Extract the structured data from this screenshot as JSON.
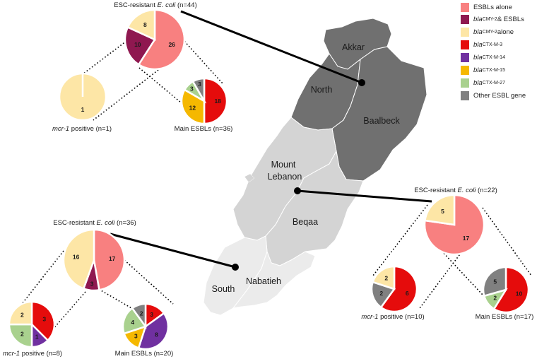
{
  "colors": {
    "esbl_alone": "#f88080",
    "cmy_esbl": "#8f1850",
    "cmy_alone": "#fde6a6",
    "ctxm3": "#e50c0c",
    "ctxm14": "#7030a0",
    "ctxm15": "#f5b800",
    "ctxm27": "#a9d18e",
    "other": "#808080"
  },
  "legend": [
    {
      "key": "esbl_alone",
      "parts": [
        {
          "t": "ESBLs alone"
        }
      ]
    },
    {
      "key": "cmy_esbl",
      "parts": [
        {
          "t": "bla",
          "i": true
        },
        {
          "t": "CMY-2",
          "s": true
        },
        {
          "t": " & ESBLs"
        }
      ]
    },
    {
      "key": "cmy_alone",
      "parts": [
        {
          "t": "bla",
          "i": true
        },
        {
          "t": "CMY-2",
          "s": true
        },
        {
          "t": " alone"
        }
      ]
    },
    {
      "key": "ctxm3",
      "parts": [
        {
          "t": "bla",
          "i": true
        },
        {
          "t": "CTX-M-3",
          "s": true
        }
      ]
    },
    {
      "key": "ctxm14",
      "parts": [
        {
          "t": "bla",
          "i": true
        },
        {
          "t": "CTX-M-14",
          "s": true
        }
      ]
    },
    {
      "key": "ctxm15",
      "parts": [
        {
          "t": "bla",
          "i": true
        },
        {
          "t": "CTX-M-15",
          "s": true
        }
      ]
    },
    {
      "key": "ctxm27",
      "parts": [
        {
          "t": "bla",
          "i": true
        },
        {
          "t": "CTX-M-27",
          "s": true
        }
      ]
    },
    {
      "key": "other",
      "parts": [
        {
          "t": "Other ESBL gene"
        }
      ]
    }
  ],
  "regions": {
    "akkar": "Akkar",
    "north": "North",
    "baalbeck": "Baalbeck",
    "mount_lebanon_1": "Mount",
    "mount_lebanon_2": "Lebanon",
    "beqaa": "Beqaa",
    "south": "South",
    "nabatieh": "Nabatieh"
  },
  "groups": {
    "north": {
      "title": {
        "pre": "ESC-resistant ",
        "em": "E. coli",
        "post": " (n=44)"
      },
      "main": [
        {
          "k": "esbl_alone",
          "v": 26
        },
        {
          "k": "cmy_esbl",
          "v": 10
        },
        {
          "k": "cmy_alone",
          "v": 8
        }
      ],
      "mcr": {
        "label_em": "mcr-1",
        "label": " positive (n=1)",
        "slices": [
          {
            "k": "cmy_alone",
            "v": 1
          }
        ]
      },
      "esbl": {
        "label": "Main ESBLs (n=36)",
        "slices": [
          {
            "k": "ctxm3",
            "v": 18
          },
          {
            "k": "ctxm15",
            "v": 12
          },
          {
            "k": "ctxm27",
            "v": 3
          },
          {
            "k": "other",
            "v": 3
          }
        ]
      }
    },
    "mount": {
      "title": {
        "pre": "ESC-resistant ",
        "em": "E. coli",
        "post": " (n=22)"
      },
      "main": [
        {
          "k": "esbl_alone",
          "v": 17
        },
        {
          "k": "cmy_alone",
          "v": 5
        }
      ],
      "mcr": {
        "label_em": "mcr-1",
        "label": " positive (n=10)",
        "slices": [
          {
            "k": "ctxm3",
            "v": 6
          },
          {
            "k": "other",
            "v": 2
          },
          {
            "k": "cmy_alone",
            "v": 2
          }
        ]
      },
      "esbl": {
        "label": "Main ESBLs (n=17)",
        "slices": [
          {
            "k": "ctxm3",
            "v": 10
          },
          {
            "k": "ctxm27",
            "v": 2
          },
          {
            "k": "other",
            "v": 5
          }
        ]
      }
    },
    "south": {
      "title": {
        "pre": "ESC-resistant ",
        "em": "E. coli",
        "post": " (n=36)"
      },
      "main": [
        {
          "k": "esbl_alone",
          "v": 17
        },
        {
          "k": "cmy_esbl",
          "v": 3
        },
        {
          "k": "cmy_alone",
          "v": 16
        }
      ],
      "mcr": {
        "label_em": "mcr-1",
        "label": " positive (n=8)",
        "slices": [
          {
            "k": "ctxm3",
            "v": 3
          },
          {
            "k": "ctxm14",
            "v": 1
          },
          {
            "k": "ctxm27",
            "v": 2
          },
          {
            "k": "cmy_alone",
            "v": 2
          }
        ]
      },
      "esbl": {
        "label": "Main ESBLs (n=20)",
        "slices": [
          {
            "k": "ctxm3",
            "v": 3
          },
          {
            "k": "ctxm14",
            "v": 8
          },
          {
            "k": "ctxm15",
            "v": 3
          },
          {
            "k": "ctxm27",
            "v": 4
          },
          {
            "k": "other",
            "v": 2
          }
        ]
      }
    }
  }
}
